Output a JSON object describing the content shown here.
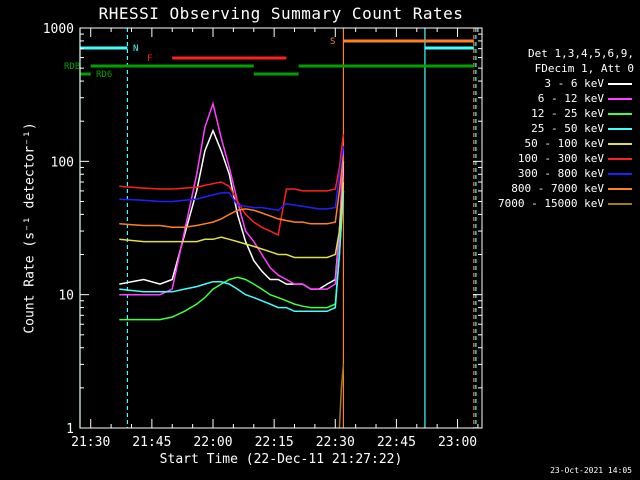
{
  "chart_data": {
    "type": "line",
    "title": "RHESSI Observing Summary Count Rates",
    "xlabel": "Start Time (22-Dec-11 21:27:22)",
    "ylabel": "Count Rate (s⁻¹ detector⁻¹)",
    "yscale": "log",
    "ylim": [
      1,
      1000
    ],
    "xlim": [
      "21:27:22",
      "23:06:00"
    ],
    "y_ticks": [
      "1",
      "10",
      "100",
      "1000"
    ],
    "x_ticks": [
      "21:30",
      "21:45",
      "22:00",
      "22:15",
      "22:30",
      "22:45",
      "23:00"
    ],
    "legend": {
      "header": [
        "Det 1,3,4,5,6,9,",
        "FDecim 1, Att 0"
      ],
      "placement": "right"
    },
    "series": [
      {
        "name": "3 - 6 keV",
        "color": "#ffffff",
        "x": [
          "21:37",
          "21:43",
          "21:47",
          "21:50",
          "21:53",
          "21:56",
          "21:58",
          "22:00",
          "22:02",
          "22:04",
          "22:06",
          "22:08",
          "22:10",
          "22:12",
          "22:14",
          "22:16",
          "22:18",
          "22:20",
          "22:22",
          "22:24",
          "22:26",
          "22:28",
          "22:30",
          "22:31",
          "22:32"
        ],
        "y": [
          12,
          13,
          12,
          13,
          28,
          60,
          120,
          170,
          120,
          80,
          40,
          25,
          18,
          15,
          13,
          13,
          12,
          12,
          12,
          11,
          11,
          12,
          13,
          30,
          100
        ]
      },
      {
        "name": "6 - 12 keV",
        "color": "#ff40ff",
        "x": [
          "21:37",
          "21:43",
          "21:47",
          "21:50",
          "21:53",
          "21:56",
          "21:58",
          "22:00",
          "22:02",
          "22:04",
          "22:06",
          "22:08",
          "22:10",
          "22:12",
          "22:14",
          "22:16",
          "22:18",
          "22:20",
          "22:22",
          "22:24",
          "22:26",
          "22:28",
          "22:30",
          "22:31",
          "22:32"
        ],
        "y": [
          10,
          10,
          10,
          11,
          30,
          80,
          180,
          270,
          150,
          90,
          50,
          30,
          25,
          20,
          16,
          14,
          13,
          12,
          12,
          11,
          11,
          11,
          12,
          30,
          120
        ]
      },
      {
        "name": "12 - 25 keV",
        "color": "#40ff40",
        "x": [
          "21:37",
          "21:43",
          "21:47",
          "21:50",
          "21:53",
          "21:56",
          "21:58",
          "22:00",
          "22:02",
          "22:04",
          "22:06",
          "22:08",
          "22:10",
          "22:12",
          "22:14",
          "22:16",
          "22:18",
          "22:20",
          "22:22",
          "22:24",
          "22:26",
          "22:28",
          "22:30",
          "22:31",
          "22:32"
        ],
        "y": [
          6.5,
          6.5,
          6.5,
          6.8,
          7.5,
          8.5,
          9.5,
          11,
          12,
          13,
          13.5,
          13,
          12,
          11,
          10,
          9.5,
          9,
          8.5,
          8.2,
          8,
          8,
          8,
          8.5,
          20,
          60
        ]
      },
      {
        "name": "25 - 50 keV",
        "color": "#40ffff",
        "x": [
          "21:37",
          "21:43",
          "21:47",
          "21:50",
          "21:53",
          "21:56",
          "21:58",
          "22:00",
          "22:02",
          "22:04",
          "22:06",
          "22:08",
          "22:10",
          "22:12",
          "22:14",
          "22:16",
          "22:18",
          "22:20",
          "22:22",
          "22:24",
          "22:26",
          "22:28",
          "22:30",
          "22:31",
          "22:32"
        ],
        "y": [
          11,
          10.5,
          10.5,
          10.5,
          11,
          11.5,
          12,
          12.5,
          12.5,
          12,
          11,
          10,
          9.5,
          9,
          8.5,
          8,
          8,
          7.5,
          7.5,
          7.5,
          7.5,
          7.5,
          8,
          20,
          60
        ]
      },
      {
        "name": "50 - 100 keV",
        "color": "#e0e040",
        "x": [
          "21:37",
          "21:43",
          "21:47",
          "21:50",
          "21:53",
          "21:56",
          "21:58",
          "22:00",
          "22:02",
          "22:04",
          "22:06",
          "22:08",
          "22:10",
          "22:12",
          "22:14",
          "22:16",
          "22:18",
          "22:20",
          "22:22",
          "22:24",
          "22:26",
          "22:28",
          "22:30",
          "22:31",
          "22:32"
        ],
        "y": [
          26,
          25,
          25,
          25,
          25,
          25,
          26,
          26,
          27,
          26,
          25,
          24,
          23,
          22,
          21,
          20,
          20,
          19,
          19,
          19,
          19,
          19,
          20,
          30,
          70
        ]
      },
      {
        "name": "100 - 300 keV",
        "color": "#ff2020",
        "x": [
          "21:37",
          "21:43",
          "21:47",
          "21:50",
          "21:53",
          "21:56",
          "21:58",
          "22:00",
          "22:02",
          "22:04",
          "22:06",
          "22:08",
          "22:10",
          "22:12",
          "22:14",
          "22:16",
          "22:18",
          "22:20",
          "22:22",
          "22:24",
          "22:26",
          "22:28",
          "22:30",
          "22:31",
          "22:32"
        ],
        "y": [
          65,
          63,
          62,
          62,
          63,
          64,
          66,
          68,
          70,
          65,
          50,
          40,
          35,
          32,
          30,
          28,
          62,
          62,
          60,
          60,
          60,
          60,
          62,
          90,
          160
        ]
      },
      {
        "name": "300 - 800 keV",
        "color": "#2020ff",
        "x": [
          "21:37",
          "21:43",
          "21:47",
          "21:50",
          "21:53",
          "21:56",
          "21:58",
          "22:00",
          "22:02",
          "22:04",
          "22:06",
          "22:08",
          "22:10",
          "22:12",
          "22:14",
          "22:16",
          "22:18",
          "22:20",
          "22:22",
          "22:24",
          "22:26",
          "22:28",
          "22:30",
          "22:31",
          "22:32"
        ],
        "y": [
          52,
          51,
          50,
          50,
          51,
          52,
          54,
          56,
          58,
          58,
          47,
          46,
          45,
          45,
          44,
          43,
          48,
          47,
          46,
          45,
          44,
          44,
          45,
          80,
          130
        ]
      },
      {
        "name": "800 - 7000 keV",
        "color": "#ff8020",
        "x": [
          "21:37",
          "21:43",
          "21:47",
          "21:50",
          "21:53",
          "21:56",
          "21:58",
          "22:00",
          "22:02",
          "22:04",
          "22:06",
          "22:08",
          "22:10",
          "22:12",
          "22:14",
          "22:16",
          "22:18",
          "22:20",
          "22:22",
          "22:24",
          "22:26",
          "22:28",
          "22:30",
          "22:31",
          "22:32"
        ],
        "y": [
          34,
          33,
          33,
          32,
          32,
          33,
          34,
          35,
          37,
          40,
          43,
          44,
          43,
          41,
          39,
          37,
          36,
          35,
          35,
          34,
          34,
          34,
          35,
          60,
          110
        ]
      },
      {
        "name": "7000 - 15000 keV",
        "color": "#a08000",
        "x": [
          "22:31",
          "22:31.5",
          "22:32"
        ],
        "y": [
          1,
          2,
          3
        ]
      }
    ],
    "flags": [
      {
        "label": "N",
        "color": "#40ffff",
        "segments": [
          [
            "21:27:22",
            "21:39"
          ],
          [
            "22:52",
            "23:04"
          ]
        ]
      },
      {
        "label": "F",
        "color": "#ff2020",
        "segments": [
          [
            "21:50",
            "22:18"
          ]
        ]
      },
      {
        "label": "S",
        "color": "#ff8020",
        "segments": [
          [
            "22:32",
            "23:04"
          ]
        ]
      },
      {
        "label": "RDB",
        "color": "#00a000",
        "segments": [
          [
            "21:30",
            "22:10"
          ],
          [
            "22:21",
            "23:04"
          ]
        ]
      },
      {
        "label": "RD6",
        "color": "#00a000",
        "segments": [
          [
            "21:27:22",
            "21:30"
          ],
          [
            "22:10",
            "22:21"
          ]
        ]
      }
    ],
    "vertical_lines": [
      {
        "x": "21:27:22",
        "color": "#40ffff",
        "style": "solid"
      },
      {
        "x": "21:39",
        "color": "#40ffff",
        "style": "dashed"
      },
      {
        "x": "22:32",
        "color": "#ff8020",
        "style": "solid"
      },
      {
        "x": "22:52",
        "color": "#40ffff",
        "style": "solid"
      },
      {
        "x": "23:04",
        "color": "#ff8020",
        "style": "dashed"
      },
      {
        "x": "23:04.5",
        "color": "#40ffff",
        "style": "dashed"
      }
    ]
  },
  "footer": {
    "timestamp": "23-Oct-2021 14:05"
  }
}
